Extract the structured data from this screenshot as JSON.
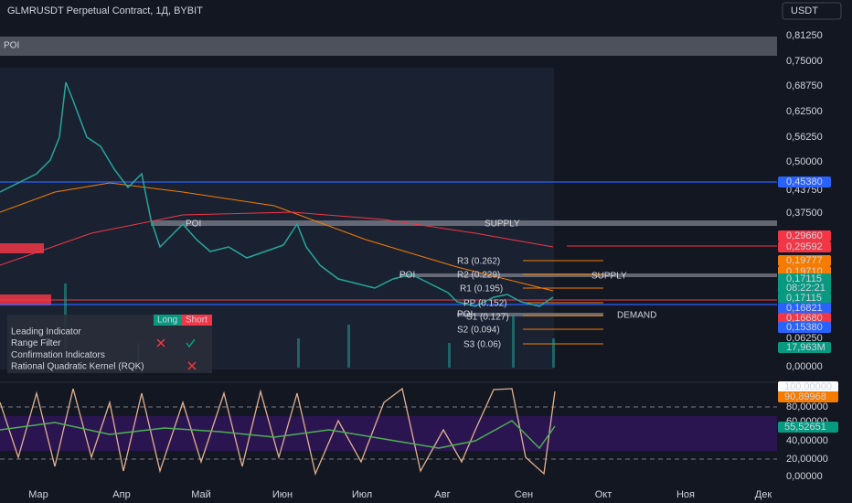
{
  "header": {
    "symbol": "GLMRUSDT Perpetual Contract, 1Д, BYBIT",
    "currency": "USDT"
  },
  "price_axis": [
    "0,81250",
    "0,75000",
    "0,68750",
    "0,62500",
    "0,56250",
    "0,50000",
    "0,43750",
    "0,37500",
    "0,06250",
    "0,00000"
  ],
  "price_badges": [
    {
      "label": "0,45380",
      "color": "#2962ff"
    },
    {
      "label": "0,29660",
      "color": "#f23645"
    },
    {
      "label": "0,29592",
      "color": "#f23645"
    },
    {
      "label": "0,19777",
      "color": "#f57c00"
    },
    {
      "label": "0,19710",
      "color": "#f57c00"
    },
    {
      "label": "0,17115",
      "color": "#089981"
    },
    {
      "label": "08:22:21",
      "color": "#089981"
    },
    {
      "label": "0,17115",
      "color": "#089981"
    },
    {
      "label": "0,16821",
      "color": "#2962ff"
    },
    {
      "label": "0,16680",
      "color": "#f23645"
    },
    {
      "label": "0,15380",
      "color": "#2962ff"
    },
    {
      "label": "17,963M",
      "color": "#089981"
    }
  ],
  "oscillator_axis": [
    "80,00000",
    "60,00000",
    "40,00000",
    "20,00000",
    "0,00000"
  ],
  "oscillator_badges": [
    {
      "label": "100,00000",
      "color": "#ffffff"
    },
    {
      "label": "90,89968",
      "color": "#f57c00"
    },
    {
      "label": "55,52651",
      "color": "#089981"
    }
  ],
  "time_axis": [
    "Мар",
    "Апр",
    "Май",
    "Июн",
    "Июл",
    "Авг",
    "Сен",
    "Окт",
    "Ноя",
    "Дек"
  ],
  "annotations": [
    {
      "text": "POI",
      "color": "#ffffff"
    },
    {
      "text": "POI",
      "color": "#ffffff"
    },
    {
      "text": "SUPPLY",
      "color": "#ffffff"
    },
    {
      "text": "R3 (0.262)",
      "color": "#f57c00"
    },
    {
      "text": "POI",
      "color": "#ffffff"
    },
    {
      "text": "R2 (0.229)",
      "color": "#f57c00"
    },
    {
      "text": "SUPPLY",
      "color": "#ffffff"
    },
    {
      "text": "R1 (0.195)",
      "color": "#f57c00"
    },
    {
      "text": "PP (0.152)",
      "color": "#f57c00"
    },
    {
      "text": "POI",
      "color": "#ffffff"
    },
    {
      "text": "S1 (0.127)",
      "color": "#f57c00"
    },
    {
      "text": "DEMAND",
      "color": "#ffffff"
    },
    {
      "text": "S2 (0.094)",
      "color": "#f57c00"
    },
    {
      "text": "S3 (0.06)",
      "color": "#f57c00"
    }
  ],
  "table": {
    "headers": [
      "Long",
      "Short"
    ],
    "rows": [
      "Leading Indicator",
      "Range Filter",
      "Confirmation Indicators",
      "Rational Quadratic Kernel (RQK)"
    ]
  }
}
